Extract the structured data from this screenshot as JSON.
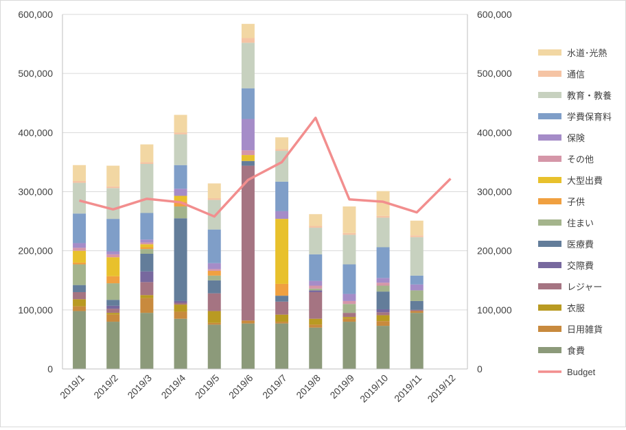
{
  "chart_data": {
    "type": "bar",
    "stacked": true,
    "categories": [
      "2019/1",
      "2019/2",
      "2019/3",
      "2019/4",
      "2019/5",
      "2019/6",
      "2019/7",
      "2019/8",
      "2019/9",
      "2019/10",
      "2019/11",
      "2019/12"
    ],
    "y_ticks": [
      "0",
      "100,000",
      "200,000",
      "300,000",
      "400,000",
      "500,000",
      "600,000"
    ],
    "y2_ticks": [
      "0",
      "100,000",
      "200,000",
      "300,000",
      "400,000",
      "500,000",
      "600,000"
    ],
    "ylim": [
      0,
      600000
    ],
    "y2lim": [
      0,
      600000
    ],
    "grid": "horizontal",
    "legend_position": "right",
    "series": [
      {
        "name": "食費",
        "color": "#8c9a7a",
        "values": [
          98000,
          80000,
          95000,
          85000,
          75000,
          77000,
          77000,
          70000,
          80000,
          73000,
          95000,
          0
        ]
      },
      {
        "name": "日用雑貨",
        "color": "#c88a3e",
        "values": [
          8000,
          12000,
          25000,
          12000,
          3000,
          5000,
          3000,
          5000,
          5000,
          8000,
          3000,
          0
        ]
      },
      {
        "name": "衣服",
        "color": "#b99a22",
        "values": [
          12000,
          3000,
          5000,
          12000,
          20000,
          0,
          12000,
          10000,
          3000,
          10000,
          0,
          0
        ]
      },
      {
        "name": "レジャー",
        "color": "#a57482",
        "values": [
          12000,
          7000,
          22000,
          3000,
          30000,
          262000,
          22000,
          45000,
          7000,
          5000,
          2000,
          0
        ]
      },
      {
        "name": "交際費",
        "color": "#77689e",
        "values": [
          0,
          5000,
          18000,
          3000,
          0,
          0,
          0,
          3000,
          0,
          5000,
          0,
          0
        ]
      },
      {
        "name": "医療費",
        "color": "#637d9a",
        "values": [
          12000,
          10000,
          30000,
          140000,
          22000,
          8000,
          10000,
          0,
          0,
          30000,
          15000,
          0
        ]
      },
      {
        "name": "住まい",
        "color": "#a4b48c",
        "values": [
          35000,
          28000,
          8000,
          20000,
          8000,
          0,
          0,
          3000,
          15000,
          10000,
          18000,
          0
        ]
      },
      {
        "name": "子供",
        "color": "#f0a040",
        "values": [
          3000,
          12000,
          3000,
          8000,
          8000,
          0,
          20000,
          0,
          0,
          0,
          0,
          0
        ]
      },
      {
        "name": "大型出費",
        "color": "#e8c12c",
        "values": [
          20000,
          32000,
          5000,
          10000,
          0,
          10000,
          110000,
          0,
          0,
          0,
          0,
          0
        ]
      },
      {
        "name": "その他",
        "color": "#d596a8",
        "values": [
          5000,
          5000,
          3000,
          0,
          3000,
          8000,
          0,
          5000,
          5000,
          5000,
          0,
          0
        ]
      },
      {
        "name": "保険",
        "color": "#a58cc8",
        "values": [
          8000,
          5000,
          5000,
          12000,
          10000,
          53000,
          13000,
          8000,
          12000,
          8000,
          10000,
          0
        ]
      },
      {
        "name": "学費保育料",
        "color": "#7f9ec8",
        "values": [
          50000,
          55000,
          45000,
          40000,
          57000,
          52000,
          50000,
          45000,
          50000,
          52000,
          15000,
          0
        ]
      },
      {
        "name": "教育・教養",
        "color": "#c7d1bf",
        "values": [
          52000,
          52000,
          83000,
          52000,
          50000,
          77000,
          52000,
          45000,
          50000,
          50000,
          65000,
          0
        ]
      },
      {
        "name": "通信",
        "color": "#f5c4a4",
        "values": [
          3000,
          3000,
          3000,
          3000,
          3000,
          8000,
          3000,
          3000,
          3000,
          3000,
          3000,
          0
        ]
      },
      {
        "name": "水道･光熱",
        "color": "#f2d7a3",
        "values": [
          27000,
          35000,
          30000,
          30000,
          25000,
          24000,
          20000,
          20000,
          45000,
          42000,
          25000,
          0
        ]
      }
    ],
    "line_series": {
      "name": "Budget",
      "color": "#f28e8e",
      "axis": "secondary",
      "values": [
        285000,
        270000,
        288000,
        282000,
        258000,
        320000,
        350000,
        425000,
        287000,
        283000,
        265000,
        322000
      ]
    }
  }
}
